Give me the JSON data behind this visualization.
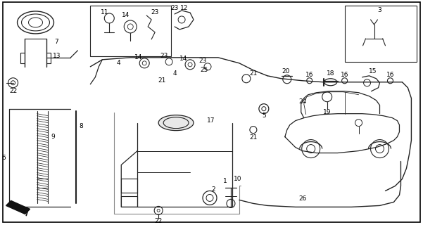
{
  "bg_color": "#ffffff",
  "fig_width": 6.01,
  "fig_height": 3.2,
  "dpi": 100,
  "line_color": "#222222",
  "label_color": "#000000"
}
